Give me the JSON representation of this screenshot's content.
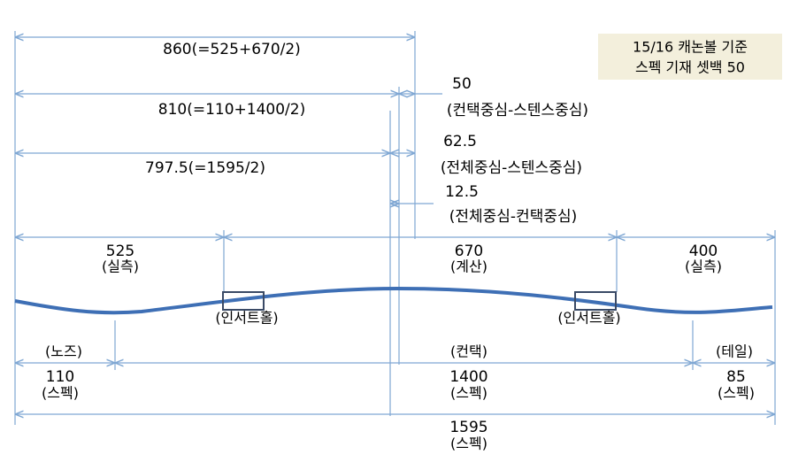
{
  "note": [
    "15/16 캐논볼 기준",
    "스펙 기재 셋백 50"
  ],
  "top_dimensions": [
    "860(=525+670/2)",
    "810(=110+1400/2)",
    "797.5(=1595/2)"
  ],
  "offsets": [
    {
      "value": "50",
      "label": "(컨택중심-스텐스중심)"
    },
    {
      "value": "62.5",
      "label": "(전체중심-스텐스중심)"
    },
    {
      "value": "12.5",
      "label": "(전체중심-컨택중심)"
    }
  ],
  "sections": [
    {
      "value": "525",
      "note": "(실측)"
    },
    {
      "value": "670",
      "note": "(계산)"
    },
    {
      "value": "400",
      "note": "(실측)"
    }
  ],
  "insert_holes": [
    "(인서트홀)",
    "(인서트홀)"
  ],
  "parts": [
    {
      "name": "(노즈)",
      "value": "110",
      "note": "(스펙)"
    },
    {
      "name": "(컨택)",
      "value": "1400",
      "note": "(스펙)"
    },
    {
      "name": "(테일)",
      "value": "85",
      "note": "(스펙)"
    }
  ],
  "total": {
    "value": "1595",
    "note": "(스펙)"
  }
}
